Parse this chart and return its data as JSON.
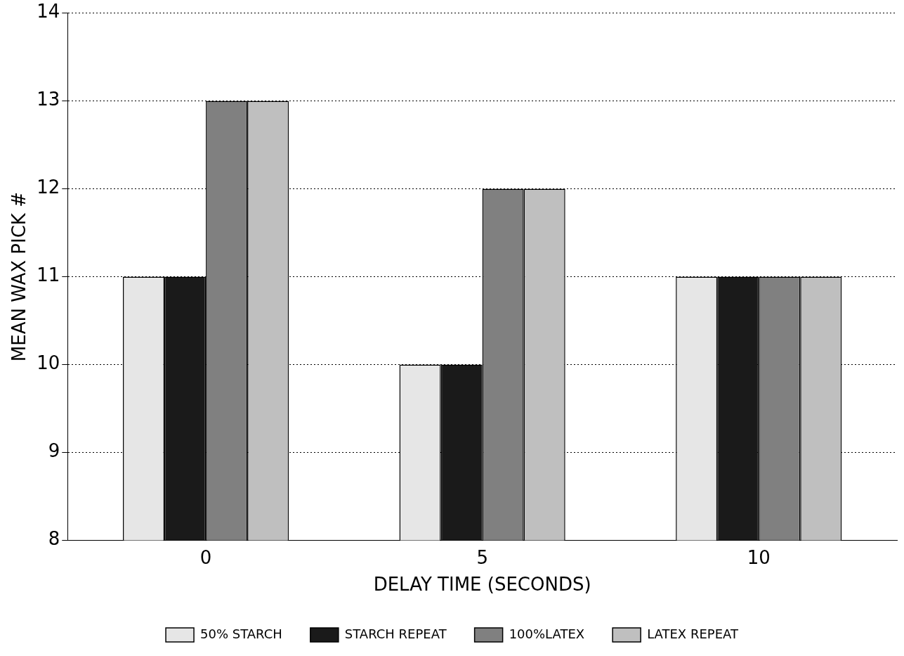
{
  "chart_data": {
    "type": "bar",
    "xlabel": "DELAY TIME (SECONDS)",
    "ylabel": "MEAN WAX PICK #",
    "categories": [
      "0",
      "5",
      "10"
    ],
    "series": [
      {
        "name": "50% STARCH",
        "color": "#e6e6e6",
        "values": [
          11,
          10,
          11
        ]
      },
      {
        "name": "STARCH REPEAT",
        "color": "#1a1a1a",
        "values": [
          11,
          10,
          11
        ]
      },
      {
        "name": "100%LATEX",
        "color": "#808080",
        "values": [
          13,
          12,
          11
        ]
      },
      {
        "name": "LATEX REPEAT",
        "color": "#bfbfbf",
        "values": [
          13,
          12,
          11
        ]
      }
    ],
    "ylim": [
      8,
      14
    ],
    "yticks": [
      8,
      9,
      10,
      11,
      12,
      13,
      14
    ],
    "grid": "y",
    "legend": "bottom"
  }
}
